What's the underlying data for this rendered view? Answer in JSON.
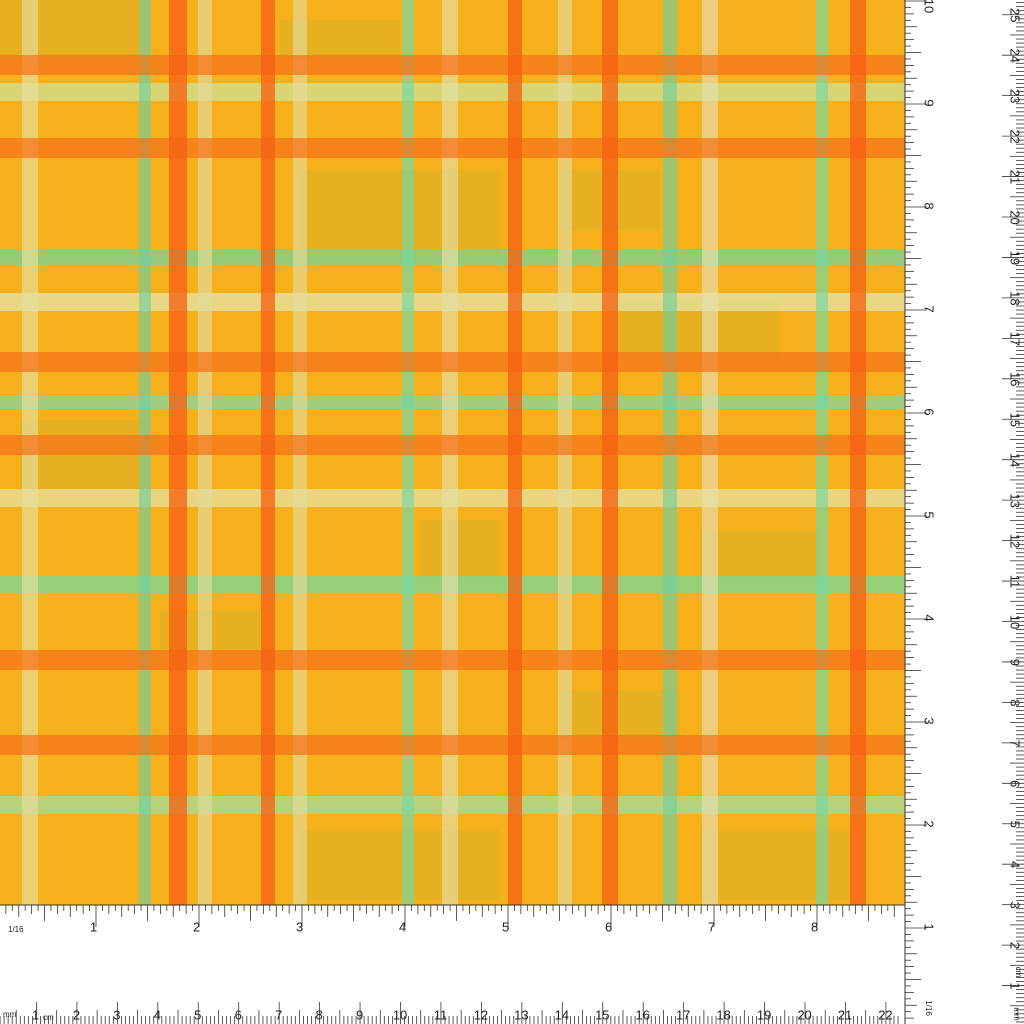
{
  "bottom_inch_ruler": {
    "fraction_label": "1/16",
    "labels": [
      "1",
      "2",
      "3",
      "4",
      "5",
      "6",
      "7",
      "8"
    ]
  },
  "bottom_cm_ruler": {
    "mm_label": "mm",
    "cm_label": "cm",
    "labels": [
      "1",
      "2",
      "3",
      "4",
      "5",
      "6",
      "7",
      "8",
      "9",
      "10",
      "11",
      "12",
      "13",
      "14",
      "15",
      "16",
      "17",
      "18",
      "19",
      "20",
      "21",
      "22"
    ]
  },
  "right_inch_ruler": {
    "fraction_label": "1/16",
    "labels": [
      "1",
      "2",
      "3",
      "4",
      "5",
      "6",
      "7",
      "8",
      "9",
      "10"
    ]
  },
  "right_cm_ruler": {
    "mm_label": "mm",
    "cm_label": "cm",
    "labels": [
      "1",
      "2",
      "3",
      "4",
      "5",
      "6",
      "7",
      "8",
      "9",
      "10",
      "11",
      "12",
      "13",
      "14",
      "15",
      "16",
      "17",
      "18",
      "19",
      "20",
      "21",
      "22",
      "23",
      "24",
      "25"
    ]
  }
}
